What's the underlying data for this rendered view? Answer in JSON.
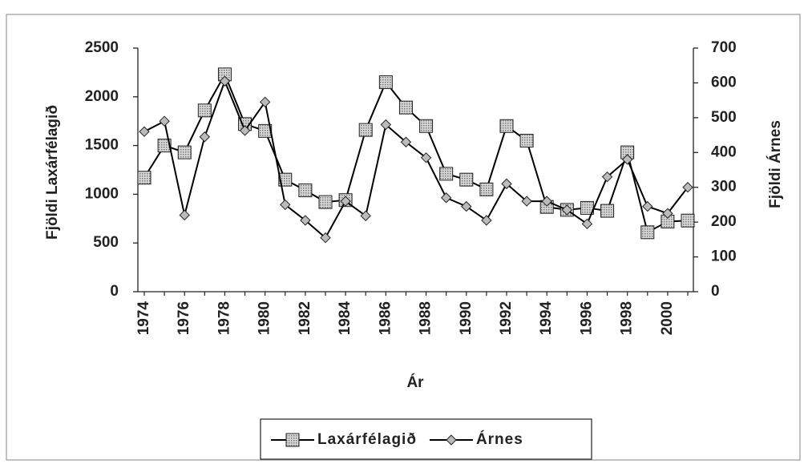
{
  "chart_data": {
    "type": "line",
    "xlabel": "Ár",
    "ylabel": "Fjöldi Laxárfélagið",
    "y2label": "Fjöldi Árnes",
    "categories": [
      "1974",
      null,
      "1976",
      null,
      "1978",
      null,
      "1980",
      null,
      "1982",
      null,
      "1984",
      null,
      "1986",
      null,
      "1988",
      null,
      "1990",
      null,
      "1992",
      null,
      "1994",
      null,
      "1996",
      null,
      "1998",
      null,
      "2000",
      null
    ],
    "series": [
      {
        "name": "Laxárfélagið",
        "color": "#000000",
        "marker": "square",
        "values": [
          1170,
          1500,
          1430,
          1860,
          2230,
          1720,
          1650,
          1150,
          1040,
          920,
          940,
          1660,
          2150,
          1890,
          1700,
          1210,
          1150,
          1050,
          1700,
          1550,
          870,
          840,
          860,
          830,
          1430,
          610,
          720,
          730
        ]
      },
      {
        "name": "Árnes",
        "color": "#000000",
        "marker": "diamond",
        "axis": "y2",
        "values": [
          460,
          490,
          220,
          445,
          605,
          463,
          545,
          250,
          205,
          155,
          260,
          218,
          480,
          430,
          385,
          270,
          245,
          205,
          310,
          260,
          260,
          235,
          195,
          330,
          380,
          245,
          225,
          300
        ]
      }
    ],
    "ylim": [
      0,
      2500
    ],
    "yticks": [
      0,
      500,
      1000,
      1500,
      2000,
      2500
    ],
    "y2lim": [
      0,
      700
    ],
    "y2ticks": [
      0,
      100,
      200,
      300,
      400,
      500,
      600,
      700
    ],
    "legend": "bottom"
  }
}
